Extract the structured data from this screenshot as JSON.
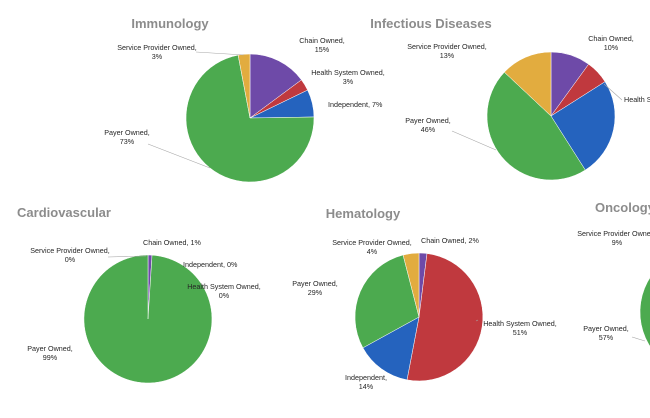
{
  "colors": {
    "Chain Owned": "#6e4aa8",
    "Health System Owned": "#c0393e",
    "Independent": "#2563be",
    "Payer Owned": "#4caa4f",
    "Service Provider Owned": "#e2ac3f",
    "title": "#8c8c8c",
    "leader": "#a6a6a6"
  },
  "chart_data": [
    {
      "type": "pie",
      "title": "Immunology",
      "categories": [
        "Chain Owned",
        "Health System Owned",
        "Independent",
        "Payer Owned",
        "Service Provider Owned"
      ],
      "values": [
        15,
        3,
        7,
        73,
        3
      ],
      "labels": [
        {
          "name": "Chain Owned,",
          "value": "15%"
        },
        {
          "name": "Health System Owned,",
          "value": "3%"
        },
        {
          "name": "Independent, 7%",
          "value": ""
        },
        {
          "name": "Payer Owned,",
          "value": "73%"
        },
        {
          "name": "Service Provider Owned,",
          "value": "3%"
        }
      ]
    },
    {
      "type": "pie",
      "title": "Infectious Diseases",
      "categories": [
        "Chain Owned",
        "Health System Owned",
        "Independent",
        "Payer Owned",
        "Service Provider Owned"
      ],
      "values": [
        10,
        6,
        25,
        46,
        13
      ],
      "labels": [
        {
          "name": "Chain Owned,",
          "value": "10%"
        },
        {
          "name": "Health Sy",
          "value": ""
        },
        {
          "name": "",
          "value": ""
        },
        {
          "name": "Payer Owned,",
          "value": "46%"
        },
        {
          "name": "Service Provider Owned,",
          "value": "13%"
        }
      ]
    },
    {
      "type": "pie",
      "title": "Cardiovascular",
      "categories": [
        "Chain Owned",
        "Health System Owned",
        "Independent",
        "Payer Owned",
        "Service Provider Owned"
      ],
      "values": [
        1,
        0,
        0,
        99,
        0
      ],
      "labels": [
        {
          "name": "Chain Owned, 1%",
          "value": ""
        },
        {
          "name": "Health System Owned,",
          "value": "0%"
        },
        {
          "name": "Independent, 0%",
          "value": ""
        },
        {
          "name": "Payer Owned,",
          "value": "99%"
        },
        {
          "name": "Service Provider Owned,",
          "value": "0%"
        }
      ]
    },
    {
      "type": "pie",
      "title": "Hematology",
      "categories": [
        "Chain Owned",
        "Health System Owned",
        "Independent",
        "Payer Owned",
        "Service Provider Owned"
      ],
      "values": [
        2,
        51,
        14,
        29,
        4
      ],
      "labels": [
        {
          "name": "Chain Owned, 2%",
          "value": ""
        },
        {
          "name": "Health System Owned,",
          "value": "51%"
        },
        {
          "name": "Independent,",
          "value": "14%"
        },
        {
          "name": "Payer Owned,",
          "value": "29%"
        },
        {
          "name": "Service Provider Owned,",
          "value": "4%"
        }
      ]
    },
    {
      "type": "pie",
      "title": "Oncology",
      "categories": [
        "Payer Owned",
        "Service Provider Owned"
      ],
      "values": [
        57,
        9
      ],
      "labels": [
        {
          "name": "Payer Owned,",
          "value": "57%"
        },
        {
          "name": "Service Provider Owned,",
          "value": "9%"
        }
      ]
    }
  ]
}
